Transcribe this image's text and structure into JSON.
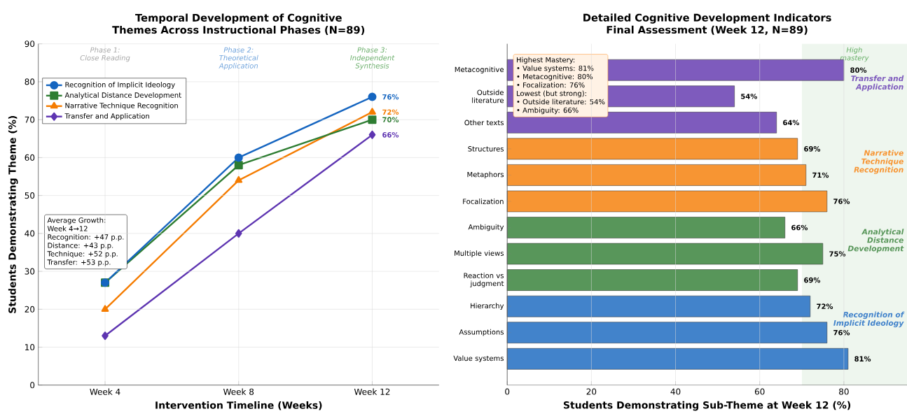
{
  "chart_data": [
    {
      "type": "line",
      "title": "Temporal Development of Cognitive Themes Across Instructional Phases (N=89)",
      "xlabel": "Intervention Timeline (Weeks)",
      "ylabel": "Students Demonstrating Theme (%)",
      "categories": [
        "Week 4",
        "Week 8",
        "Week 12"
      ],
      "ylim": [
        0,
        90
      ],
      "yticks": [
        0,
        10,
        20,
        30,
        40,
        50,
        60,
        70,
        80,
        90
      ],
      "grid": true,
      "legend": "top left",
      "series": [
        {
          "name": "Recognition of Implicit Ideology",
          "color": "#1565c0",
          "marker": "circle",
          "values": [
            27,
            60,
            76
          ],
          "value_labels": [
            null,
            null,
            "76%"
          ]
        },
        {
          "name": "Analytical Distance Development",
          "color": "#2e7d32",
          "marker": "square",
          "values": [
            27,
            58,
            70
          ],
          "value_labels": [
            null,
            null,
            "70%"
          ]
        },
        {
          "name": "Narrative Technique Recognition",
          "color": "#f57c00",
          "marker": "triangle",
          "values": [
            20,
            54,
            72
          ],
          "value_labels": [
            null,
            null,
            "72%"
          ]
        },
        {
          "name": "Transfer and Application",
          "color": "#5e35b1",
          "marker": "diamond",
          "values": [
            13,
            40,
            66
          ],
          "value_labels": [
            null,
            null,
            "66%"
          ]
        }
      ],
      "annotations": [
        "Phase 1: Close Reading",
        "Phase 2: Theoretical Application",
        "Phase 3: Independent Synthesis",
        "Average Growth:",
        "Week 4→12",
        "Recognition: +47 p.p.",
        "Distance: +43 p.p.",
        "Technique: +52 p.p.",
        "Transfer: +53 p.p."
      ]
    },
    {
      "type": "bar",
      "orientation": "horizontal",
      "title": "Detailed Cognitive Development Indicators Final Assessment (Week 12, N=89)",
      "xlabel": "Students Demonstrating Sub-Theme at Week 12 (%)",
      "categories": [
        "Metacognitive",
        "Outside literature",
        "Other texts",
        "Structures",
        "Metaphors",
        "Focalization",
        "Ambiguity",
        "Multiple views",
        "Reaction vs judgment",
        "Hierarchy",
        "Assumptions",
        "Value systems"
      ],
      "values": [
        80,
        54,
        64,
        69,
        71,
        76,
        66,
        75,
        69,
        72,
        76,
        81
      ],
      "value_labels": [
        "80%",
        "54%",
        "64%",
        "69%",
        "71%",
        "76%",
        "66%",
        "75%",
        "69%",
        "72%",
        "76%",
        "81%"
      ],
      "colors": [
        "#7e5bbd",
        "#7e5bbd",
        "#7e5bbd",
        "#f79533",
        "#f79533",
        "#f79533",
        "#58965a",
        "#58965a",
        "#58965a",
        "#4283cb",
        "#4283cb",
        "#4283cb"
      ],
      "xlim": [
        0,
        95
      ],
      "xticks": [
        0,
        20,
        40,
        60,
        80
      ],
      "grid": "x",
      "bands": [
        {
          "axis": "x",
          "from": 70,
          "to": 95,
          "label": "High mastery",
          "color": "#eef6ee"
        }
      ],
      "annotations": [
        "Highest Mastery:",
        "• Value systems: 81%",
        "• Metacognitive: 80%",
        "• Focalization: 76%",
        "Lowest (but strong):",
        "• Outside literature: 54%",
        "• Ambiguity: 66%",
        "Transfer and Application",
        "Narrative Technique Recognition",
        "Analytical Distance Development",
        "Recognition of Implicit Ideology"
      ]
    }
  ]
}
